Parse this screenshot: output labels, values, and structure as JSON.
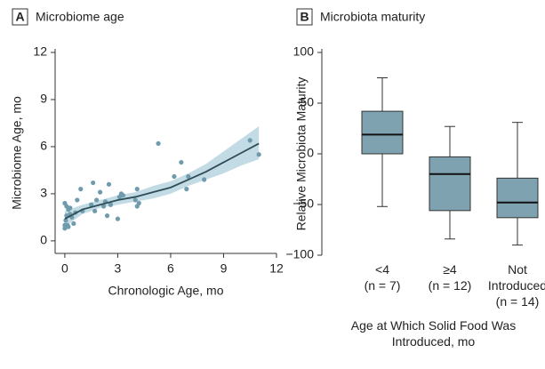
{
  "chart_data": [
    {
      "type": "scatter",
      "panel": "A",
      "title": "Microbiome age",
      "xlabel": "Chronologic Age, mo",
      "ylabel": "Microbiome Age, mo",
      "xlim": [
        -0.55,
        12
      ],
      "ylim": [
        -0.8,
        12
      ],
      "xticks": [
        0,
        3,
        6,
        9,
        12
      ],
      "yticks": [
        0,
        3,
        6,
        9,
        12
      ],
      "color": "#6f9bad",
      "x": [
        0,
        0,
        0,
        0.05,
        0.1,
        0.1,
        0.15,
        0.2,
        0.2,
        0.3,
        0.3,
        0.4,
        0.5,
        0.6,
        0.7,
        0.9,
        1.0,
        1.5,
        1.6,
        1.7,
        1.8,
        2.0,
        2.2,
        2.3,
        2.4,
        2.5,
        2.6,
        3.0,
        3.1,
        3.2,
        3.3,
        4.0,
        4.1,
        4.1,
        4.2,
        5.3,
        6.2,
        6.6,
        6.9,
        7.0,
        7.9,
        10.5,
        11.0
      ],
      "y": [
        2.4,
        1.0,
        0.8,
        1.3,
        1.6,
        2.2,
        1.0,
        2.0,
        0.9,
        1.7,
        2.1,
        1.5,
        1.1,
        1.8,
        2.6,
        3.3,
        1.9,
        2.3,
        3.7,
        1.9,
        2.6,
        3.1,
        2.2,
        2.5,
        1.6,
        3.6,
        2.3,
        1.4,
        2.8,
        3.0,
        2.9,
        2.6,
        3.3,
        2.2,
        2.4,
        6.2,
        4.1,
        5.0,
        3.3,
        4.1,
        3.9,
        6.4,
        5.5
      ],
      "fit": {
        "color": "#2e4d57",
        "band_color": "#c3dbe5",
        "x": [
          0,
          1,
          2,
          3,
          4,
          5,
          6,
          7,
          8,
          9,
          10,
          11
        ],
        "y": [
          1.4,
          2.0,
          2.3,
          2.6,
          2.8,
          3.1,
          3.4,
          3.9,
          4.4,
          5.0,
          5.6,
          6.2
        ],
        "lower": [
          0.9,
          1.7,
          2.1,
          2.3,
          2.5,
          2.7,
          3.0,
          3.5,
          3.9,
          4.3,
          4.8,
          5.2
        ],
        "upper": [
          1.9,
          2.3,
          2.6,
          2.9,
          3.1,
          3.5,
          3.8,
          4.3,
          4.9,
          5.7,
          6.5,
          7.3
        ]
      }
    },
    {
      "type": "box",
      "panel": "B",
      "title": "Microbiota maturity",
      "xlabel": "Age at Which Solid Food Was Introduced, mo",
      "ylabel": "Relative Microbiota Maturity",
      "categories": [
        "<4",
        "≥4",
        "Not Introduced"
      ],
      "sublabels": [
        "(n = 7)",
        "(n = 12)",
        "(n = 14)"
      ],
      "ylim": [
        -100,
        100
      ],
      "yticks": [
        100,
        50,
        0,
        {
          "value": -50,
          "label": "−50"
        },
        {
          "value": -100,
          "label": "−100"
        }
      ],
      "color": "#7fa2b0",
      "max": [
        75,
        27,
        31
      ],
      "q3": [
        42,
        -3,
        -24
      ],
      "median": [
        19,
        -20,
        -48
      ],
      "q1": [
        0,
        -56,
        -63
      ],
      "min": [
        -52,
        -84,
        -90
      ]
    }
  ]
}
